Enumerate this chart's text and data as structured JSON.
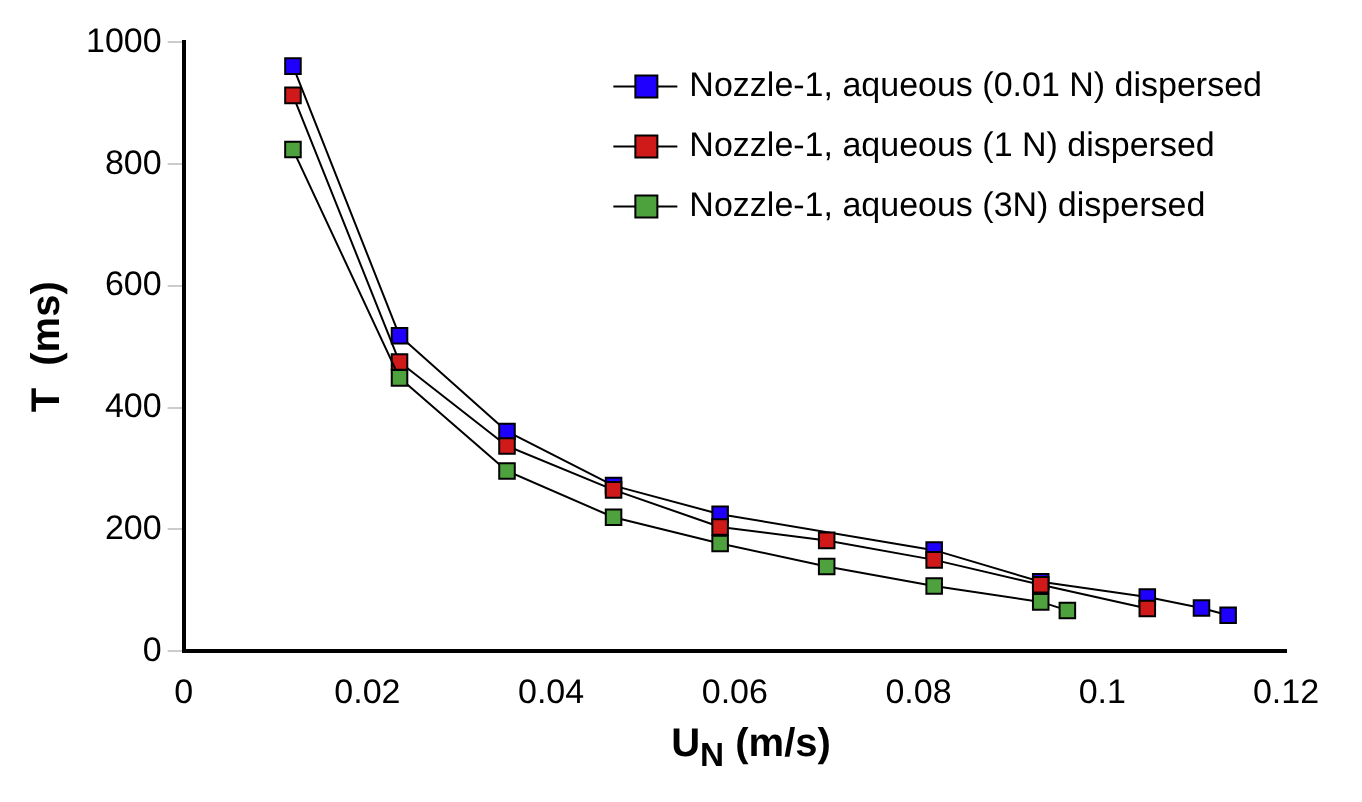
{
  "chart_data": {
    "type": "line",
    "xlabel": "U$_{N}$  (m/s)",
    "ylabel": "T  (ms)",
    "xlim": [
      0,
      0.12
    ],
    "xticks": [
      0,
      0.02,
      0.04,
      0.06,
      0.08,
      0.1,
      0.12
    ],
    "ylim": [
      0,
      1000
    ],
    "yticks": [
      0,
      200,
      400,
      600,
      800,
      1000
    ],
    "grid": false,
    "legend": "top right",
    "marker": "square",
    "line_style": "solid",
    "series": [
      {
        "name": "Nozzle-1, aqueous (0.01 N) dispersed",
        "color": "#1f00ff",
        "x": [
          0.0119,
          0.0235,
          0.0352,
          0.0468,
          0.0584,
          0.07,
          0.0817,
          0.0933,
          0.1049,
          0.1108,
          0.1137
        ],
        "values": [
          961,
          518,
          361,
          272,
          225,
          null,
          166,
          114,
          89,
          71,
          59
        ]
      },
      {
        "name": "Nozzle-1, aqueous (1 N) dispersed",
        "color": "#d01a1a",
        "x": [
          0.0119,
          0.0235,
          0.0352,
          0.0468,
          0.0584,
          0.07,
          0.0817,
          0.0933,
          0.1049
        ],
        "values": [
          913,
          475,
          337,
          265,
          204,
          182,
          150,
          109,
          70
        ]
      },
      {
        "name": "Nozzle-1, aqueous (3N) dispersed",
        "color": "#4ea23e",
        "x": [
          0.0119,
          0.0235,
          0.0352,
          0.0468,
          0.0584,
          0.07,
          0.0817,
          0.0933,
          0.0962
        ],
        "values": [
          824,
          449,
          296,
          220,
          177,
          139,
          107,
          81,
          67
        ]
      }
    ]
  }
}
